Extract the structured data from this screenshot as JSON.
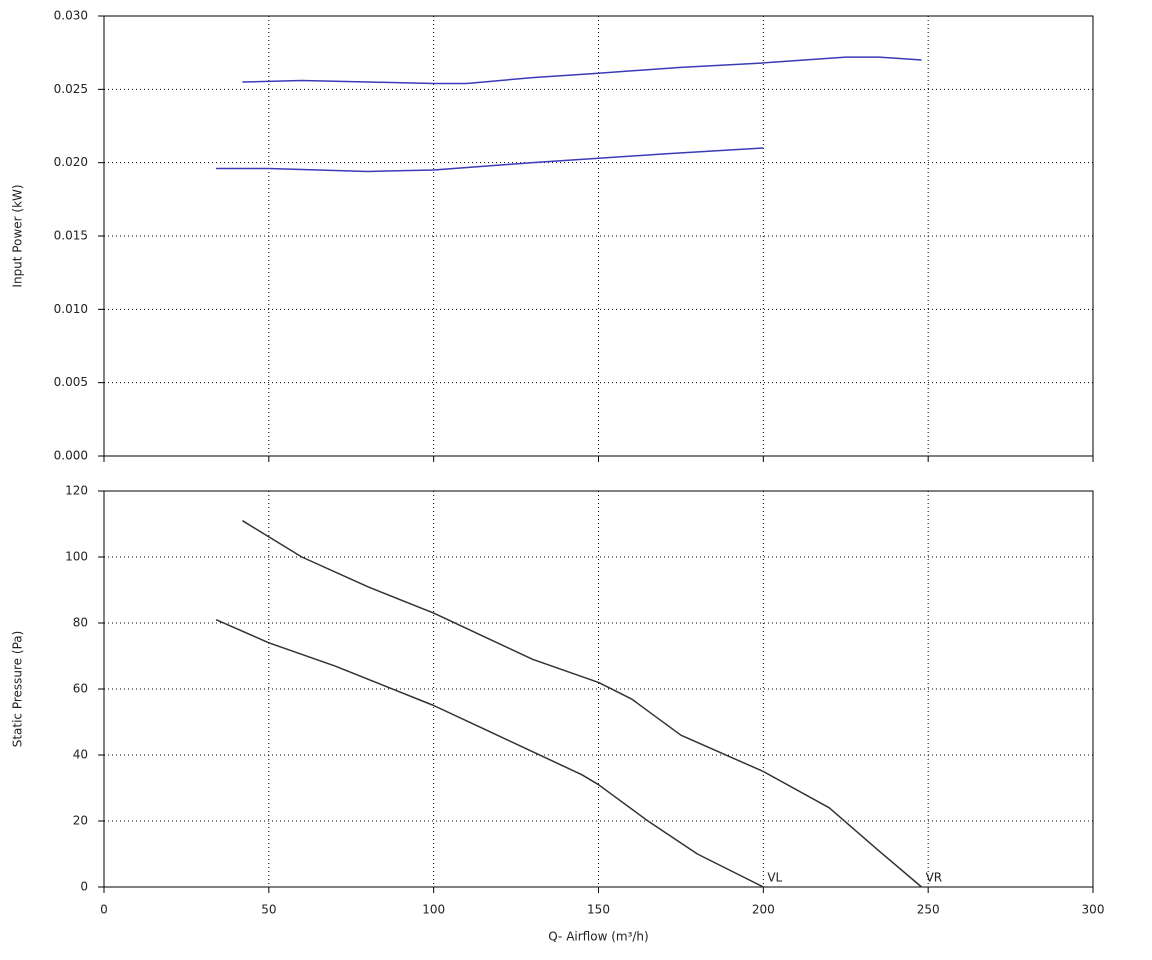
{
  "chart_data": [
    {
      "type": "line",
      "ylabel": "Input Power (kW)",
      "xlim": [
        0,
        300
      ],
      "ylim": [
        0,
        0.03
      ],
      "yticks": [
        {
          "value": 0,
          "label": "0.000"
        },
        {
          "value": 0.005,
          "label": "0.005"
        },
        {
          "value": 0.01,
          "label": "0.010"
        },
        {
          "value": 0.015,
          "label": "0.015"
        },
        {
          "value": 0.02,
          "label": "0.020"
        },
        {
          "value": 0.025,
          "label": "0.025"
        },
        {
          "value": 0.03,
          "label": "0.030"
        }
      ],
      "grid": true,
      "series": [
        {
          "color": "#3b3bb8",
          "x": [
            42,
            60,
            80,
            100,
            110,
            130,
            150,
            175,
            200,
            225,
            235,
            248
          ],
          "values": [
            0.0255,
            0.0256,
            0.0255,
            0.0254,
            0.0254,
            0.0258,
            0.0261,
            0.0265,
            0.0268,
            0.0272,
            0.0272,
            0.027
          ]
        },
        {
          "color": "#3b3bb8",
          "x": [
            34,
            50,
            80,
            100,
            130,
            150,
            170,
            200
          ],
          "values": [
            0.0196,
            0.0196,
            0.0194,
            0.0195,
            0.02,
            0.0203,
            0.0206,
            0.021
          ]
        }
      ]
    },
    {
      "type": "line",
      "xlabel": "Q- Airflow (m³/h)",
      "ylabel": "Static Pressure (Pa)",
      "xlim": [
        0,
        300
      ],
      "ylim": [
        0,
        120
      ],
      "xticks": [
        0,
        50,
        100,
        150,
        200,
        250,
        300
      ],
      "yticks": [
        0,
        20,
        40,
        60,
        80,
        100,
        120
      ],
      "grid": true,
      "series": [
        {
          "color": "#333333",
          "x": [
            42,
            60,
            80,
            100,
            115,
            130,
            150,
            160,
            175,
            200,
            220,
            235,
            248
          ],
          "values": [
            111,
            100,
            91,
            83,
            76,
            69,
            62,
            57,
            46,
            35,
            24,
            11,
            0
          ]
        },
        {
          "color": "#333333",
          "x": [
            34,
            50,
            70,
            100,
            115,
            130,
            145,
            150,
            165,
            180,
            200
          ],
          "values": [
            81,
            74,
            67,
            55,
            48,
            41,
            34,
            31,
            20,
            10,
            0
          ]
        }
      ],
      "annotations": [
        {
          "text": "VL",
          "x": 200,
          "y": 0
        },
        {
          "text": "VR",
          "x": 248,
          "y": 0
        }
      ]
    }
  ]
}
